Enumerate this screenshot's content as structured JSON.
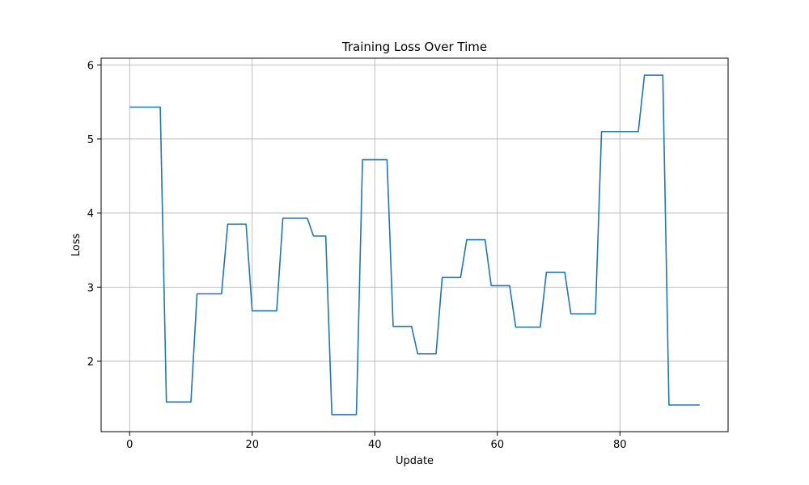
{
  "chart_data": {
    "type": "line",
    "title": "Training Loss Over Time",
    "xlabel": "Update",
    "ylabel": "Loss",
    "xlim": [
      -4.65,
      97.65
    ],
    "ylim": [
      1.05,
      6.09
    ],
    "xticks": [
      0,
      20,
      40,
      60,
      80
    ],
    "yticks": [
      2,
      3,
      4,
      5,
      6
    ],
    "grid": true,
    "line_color": "#1f77b4",
    "x": [
      0,
      1,
      2,
      3,
      4,
      5,
      6,
      7,
      8,
      9,
      10,
      11,
      12,
      13,
      14,
      15,
      16,
      17,
      18,
      19,
      20,
      21,
      22,
      23,
      24,
      25,
      26,
      27,
      28,
      29,
      30,
      31,
      32,
      33,
      34,
      35,
      36,
      37,
      38,
      39,
      40,
      41,
      42,
      43,
      44,
      45,
      46,
      47,
      48,
      49,
      50,
      51,
      52,
      53,
      54,
      55,
      56,
      57,
      58,
      59,
      60,
      61,
      62,
      63,
      64,
      65,
      66,
      67,
      68,
      69,
      70,
      71,
      72,
      73,
      74,
      75,
      76,
      77,
      78,
      79,
      80,
      81,
      82,
      83,
      84,
      85,
      86,
      87,
      88,
      89,
      90,
      91,
      92,
      93
    ],
    "y": [
      5.43,
      5.43,
      5.43,
      5.43,
      5.43,
      5.43,
      1.45,
      1.45,
      1.45,
      1.45,
      1.45,
      2.91,
      2.91,
      2.91,
      2.91,
      2.91,
      3.85,
      3.85,
      3.85,
      3.85,
      2.68,
      2.68,
      2.68,
      2.68,
      2.68,
      3.93,
      3.93,
      3.93,
      3.93,
      3.93,
      3.69,
      3.69,
      3.69,
      1.28,
      1.28,
      1.28,
      1.28,
      1.28,
      4.72,
      4.72,
      4.72,
      4.72,
      4.72,
      2.47,
      2.47,
      2.47,
      2.47,
      2.1,
      2.1,
      2.1,
      2.1,
      3.13,
      3.13,
      3.13,
      3.13,
      3.64,
      3.64,
      3.64,
      3.64,
      3.02,
      3.02,
      3.02,
      3.02,
      2.46,
      2.46,
      2.46,
      2.46,
      2.46,
      3.2,
      3.2,
      3.2,
      3.2,
      2.64,
      2.64,
      2.64,
      2.64,
      2.64,
      5.1,
      5.1,
      5.1,
      5.1,
      5.1,
      5.1,
      5.1,
      5.86,
      5.86,
      5.86,
      5.86,
      1.41,
      1.41,
      1.41,
      1.41,
      1.41,
      1.41
    ]
  }
}
